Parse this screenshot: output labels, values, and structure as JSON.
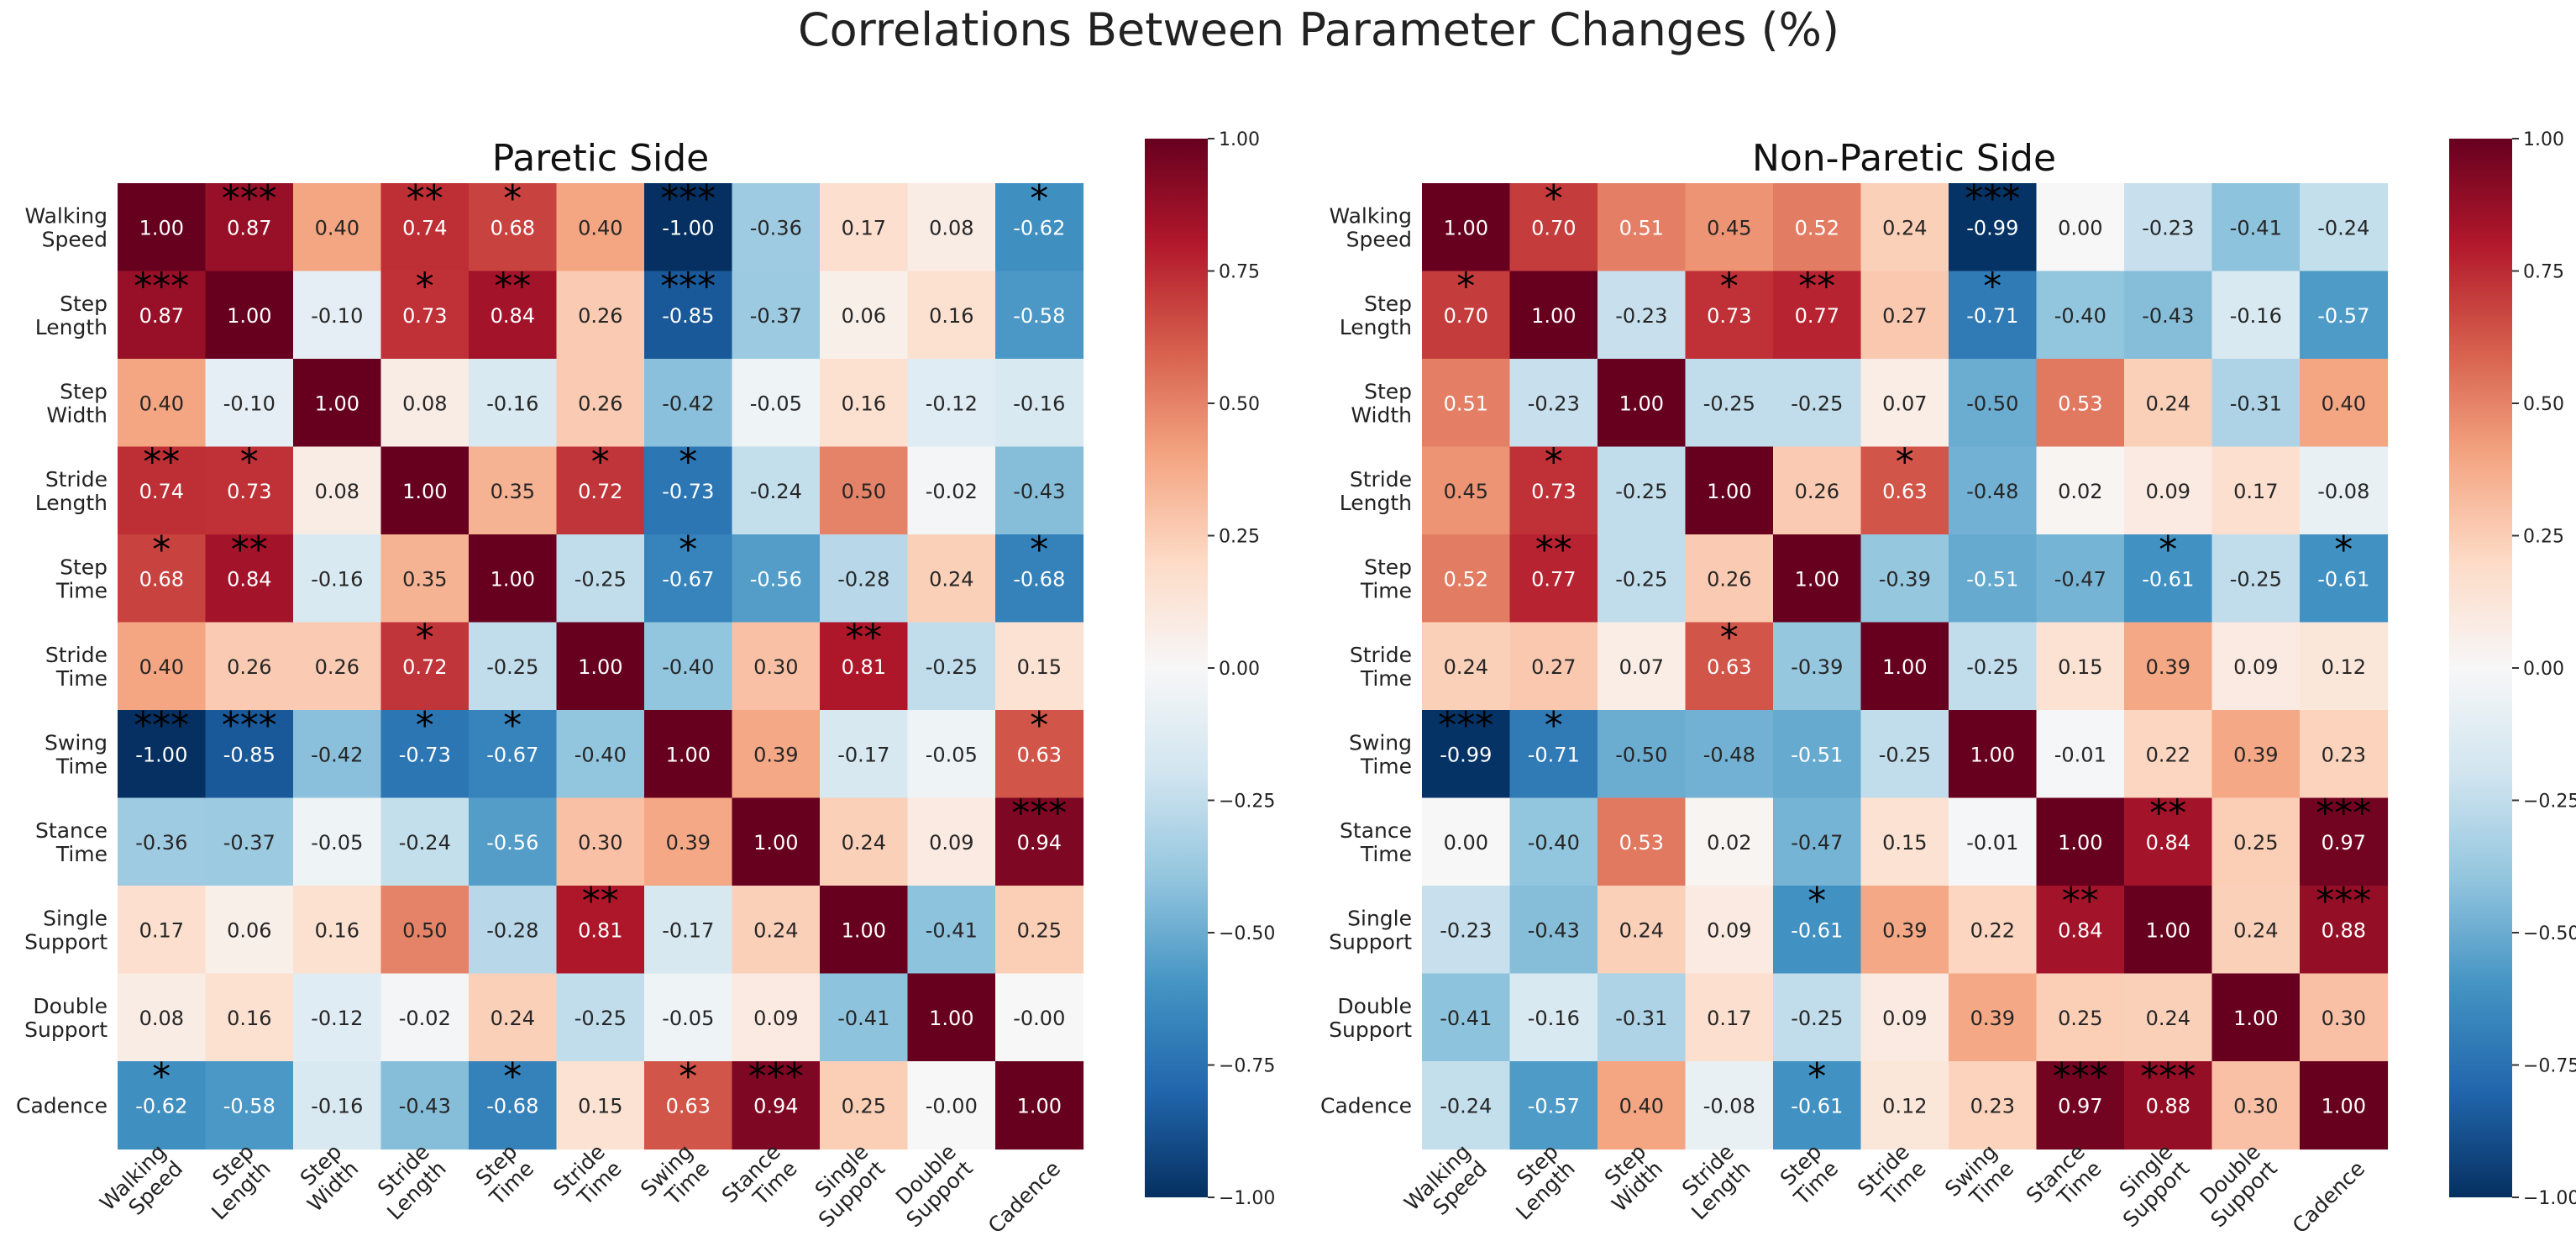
{
  "suptitle": "Correlations Between Parameter Changes (%)",
  "chart_data": [
    {
      "type": "heatmap",
      "title": "Paretic Side",
      "row_labels": [
        [
          "Walking",
          "Speed"
        ],
        [
          "Step",
          "Length"
        ],
        [
          "Step",
          "Width"
        ],
        [
          "Stride",
          "Length"
        ],
        [
          "Step",
          "Time"
        ],
        [
          "Stride",
          "Time"
        ],
        [
          "Swing",
          "Time"
        ],
        [
          "Stance",
          "Time"
        ],
        [
          "Single",
          "Support"
        ],
        [
          "Double",
          "Support"
        ],
        [
          "Cadence"
        ]
      ],
      "col_labels": [
        [
          "Walking",
          "Speed"
        ],
        [
          "Step",
          "Length"
        ],
        [
          "Step",
          "Width"
        ],
        [
          "Stride",
          "Length"
        ],
        [
          "Step",
          "Time"
        ],
        [
          "Stride",
          "Time"
        ],
        [
          "Swing",
          "Time"
        ],
        [
          "Stance",
          "Time"
        ],
        [
          "Single",
          "Support"
        ],
        [
          "Double",
          "Support"
        ],
        [
          "Cadence"
        ]
      ],
      "values": [
        [
          "1.00",
          "0.87",
          "0.40",
          "0.74",
          "0.68",
          "0.40",
          "-1.00",
          "-0.36",
          "0.17",
          "0.08",
          "-0.62"
        ],
        [
          "0.87",
          "1.00",
          "-0.10",
          "0.73",
          "0.84",
          "0.26",
          "-0.85",
          "-0.37",
          "0.06",
          "0.16",
          "-0.58"
        ],
        [
          "0.40",
          "-0.10",
          "1.00",
          "0.08",
          "-0.16",
          "0.26",
          "-0.42",
          "-0.05",
          "0.16",
          "-0.12",
          "-0.16"
        ],
        [
          "0.74",
          "0.73",
          "0.08",
          "1.00",
          "0.35",
          "0.72",
          "-0.73",
          "-0.24",
          "0.50",
          "-0.02",
          "-0.43"
        ],
        [
          "0.68",
          "0.84",
          "-0.16",
          "0.35",
          "1.00",
          "-0.25",
          "-0.67",
          "-0.56",
          "-0.28",
          "0.24",
          "-0.68"
        ],
        [
          "0.40",
          "0.26",
          "0.26",
          "0.72",
          "-0.25",
          "1.00",
          "-0.40",
          "0.30",
          "0.81",
          "-0.25",
          "0.15"
        ],
        [
          "-1.00",
          "-0.85",
          "-0.42",
          "-0.73",
          "-0.67",
          "-0.40",
          "1.00",
          "0.39",
          "-0.17",
          "-0.05",
          "0.63"
        ],
        [
          "-0.36",
          "-0.37",
          "-0.05",
          "-0.24",
          "-0.56",
          "0.30",
          "0.39",
          "1.00",
          "0.24",
          "0.09",
          "0.94"
        ],
        [
          "0.17",
          "0.06",
          "0.16",
          "0.50",
          "-0.28",
          "0.81",
          "-0.17",
          "0.24",
          "1.00",
          "-0.41",
          "0.25"
        ],
        [
          "0.08",
          "0.16",
          "-0.12",
          "-0.02",
          "0.24",
          "-0.25",
          "-0.05",
          "0.09",
          "-0.41",
          "1.00",
          "-0.00"
        ],
        [
          "-0.62",
          "-0.58",
          "-0.16",
          "-0.43",
          "-0.68",
          "0.15",
          "0.63",
          "0.94",
          "0.25",
          "-0.00",
          "1.00"
        ]
      ],
      "significance": [
        [
          "",
          "***",
          "",
          "**",
          "*",
          "",
          "***",
          "",
          "",
          "",
          "*"
        ],
        [
          "***",
          "",
          "",
          "*",
          "**",
          "",
          "***",
          "",
          "",
          "",
          ""
        ],
        [
          "",
          "",
          "",
          "",
          "",
          "",
          "",
          "",
          "",
          "",
          ""
        ],
        [
          "**",
          "*",
          "",
          "",
          "",
          "*",
          "*",
          "",
          "",
          "",
          ""
        ],
        [
          "*",
          "**",
          "",
          "",
          "",
          "",
          "*",
          "",
          "",
          "",
          "*"
        ],
        [
          "",
          "",
          "",
          "*",
          "",
          "",
          "",
          "",
          "**",
          "",
          ""
        ],
        [
          "***",
          "***",
          "",
          "*",
          "*",
          "",
          "",
          "",
          "",
          "",
          "*"
        ],
        [
          "",
          "",
          "",
          "",
          "",
          "",
          "",
          "",
          "",
          "",
          "***"
        ],
        [
          "",
          "",
          "",
          "",
          "",
          "**",
          "",
          "",
          "",
          "",
          ""
        ],
        [
          "",
          "",
          "",
          "",
          "",
          "",
          "",
          "",
          "",
          "",
          ""
        ],
        [
          "*",
          "",
          "",
          "",
          "*",
          "",
          "*",
          "***",
          "",
          "",
          ""
        ]
      ],
      "colorbar": {
        "range": [
          -1.0,
          1.0
        ],
        "ticks": [
          "1.00",
          "0.75",
          "0.50",
          "0.25",
          "0.00",
          "−0.25",
          "−0.50",
          "−0.75",
          "−1.00"
        ]
      }
    },
    {
      "type": "heatmap",
      "title": "Non-Paretic Side",
      "row_labels": [
        [
          "Walking",
          "Speed"
        ],
        [
          "Step",
          "Length"
        ],
        [
          "Step",
          "Width"
        ],
        [
          "Stride",
          "Length"
        ],
        [
          "Step",
          "Time"
        ],
        [
          "Stride",
          "Time"
        ],
        [
          "Swing",
          "Time"
        ],
        [
          "Stance",
          "Time"
        ],
        [
          "Single",
          "Support"
        ],
        [
          "Double",
          "Support"
        ],
        [
          "Cadence"
        ]
      ],
      "col_labels": [
        [
          "Walking",
          "Speed"
        ],
        [
          "Step",
          "Length"
        ],
        [
          "Step",
          "Width"
        ],
        [
          "Stride",
          "Length"
        ],
        [
          "Step",
          "Time"
        ],
        [
          "Stride",
          "Time"
        ],
        [
          "Swing",
          "Time"
        ],
        [
          "Stance",
          "Time"
        ],
        [
          "Single",
          "Support"
        ],
        [
          "Double",
          "Support"
        ],
        [
          "Cadence"
        ]
      ],
      "values": [
        [
          "1.00",
          "0.70",
          "0.51",
          "0.45",
          "0.52",
          "0.24",
          "-0.99",
          "0.00",
          "-0.23",
          "-0.41",
          "-0.24"
        ],
        [
          "0.70",
          "1.00",
          "-0.23",
          "0.73",
          "0.77",
          "0.27",
          "-0.71",
          "-0.40",
          "-0.43",
          "-0.16",
          "-0.57"
        ],
        [
          "0.51",
          "-0.23",
          "1.00",
          "-0.25",
          "-0.25",
          "0.07",
          "-0.50",
          "0.53",
          "0.24",
          "-0.31",
          "0.40"
        ],
        [
          "0.45",
          "0.73",
          "-0.25",
          "1.00",
          "0.26",
          "0.63",
          "-0.48",
          "0.02",
          "0.09",
          "0.17",
          "-0.08"
        ],
        [
          "0.52",
          "0.77",
          "-0.25",
          "0.26",
          "1.00",
          "-0.39",
          "-0.51",
          "-0.47",
          "-0.61",
          "-0.25",
          "-0.61"
        ],
        [
          "0.24",
          "0.27",
          "0.07",
          "0.63",
          "-0.39",
          "1.00",
          "-0.25",
          "0.15",
          "0.39",
          "0.09",
          "0.12"
        ],
        [
          "-0.99",
          "-0.71",
          "-0.50",
          "-0.48",
          "-0.51",
          "-0.25",
          "1.00",
          "-0.01",
          "0.22",
          "0.39",
          "0.23"
        ],
        [
          "0.00",
          "-0.40",
          "0.53",
          "0.02",
          "-0.47",
          "0.15",
          "-0.01",
          "1.00",
          "0.84",
          "0.25",
          "0.97"
        ],
        [
          "-0.23",
          "-0.43",
          "0.24",
          "0.09",
          "-0.61",
          "0.39",
          "0.22",
          "0.84",
          "1.00",
          "0.24",
          "0.88"
        ],
        [
          "-0.41",
          "-0.16",
          "-0.31",
          "0.17",
          "-0.25",
          "0.09",
          "0.39",
          "0.25",
          "0.24",
          "1.00",
          "0.30"
        ],
        [
          "-0.24",
          "-0.57",
          "0.40",
          "-0.08",
          "-0.61",
          "0.12",
          "0.23",
          "0.97",
          "0.88",
          "0.30",
          "1.00"
        ]
      ],
      "significance": [
        [
          "",
          "*",
          "",
          "",
          "",
          "",
          "***",
          "",
          "",
          "",
          ""
        ],
        [
          "*",
          "",
          "",
          "*",
          "**",
          "",
          "*",
          "",
          "",
          "",
          ""
        ],
        [
          "",
          "",
          "",
          "",
          "",
          "",
          "",
          "",
          "",
          "",
          ""
        ],
        [
          "",
          "*",
          "",
          "",
          "",
          "*",
          "",
          "",
          "",
          "",
          ""
        ],
        [
          "",
          "**",
          "",
          "",
          "",
          "",
          "",
          "",
          "*",
          "",
          "*"
        ],
        [
          "",
          "",
          "",
          "*",
          "",
          "",
          "",
          "",
          "",
          "",
          ""
        ],
        [
          "***",
          "*",
          "",
          "",
          "",
          "",
          "",
          "",
          "",
          "",
          ""
        ],
        [
          "",
          "",
          "",
          "",
          "",
          "",
          "",
          "",
          "**",
          "",
          "***"
        ],
        [
          "",
          "",
          "",
          "",
          "*",
          "",
          "",
          "**",
          "",
          "",
          "***"
        ],
        [
          "",
          "",
          "",
          "",
          "",
          "",
          "",
          "",
          "",
          "",
          ""
        ],
        [
          "",
          "",
          "",
          "",
          "*",
          "",
          "",
          "***",
          "***",
          "",
          ""
        ]
      ],
      "colorbar": {
        "range": [
          -1.0,
          1.0
        ],
        "ticks": [
          "1.00",
          "0.75",
          "0.50",
          "0.25",
          "0.00",
          "−0.25",
          "−0.50",
          "−0.75",
          "−1.00"
        ]
      }
    }
  ]
}
